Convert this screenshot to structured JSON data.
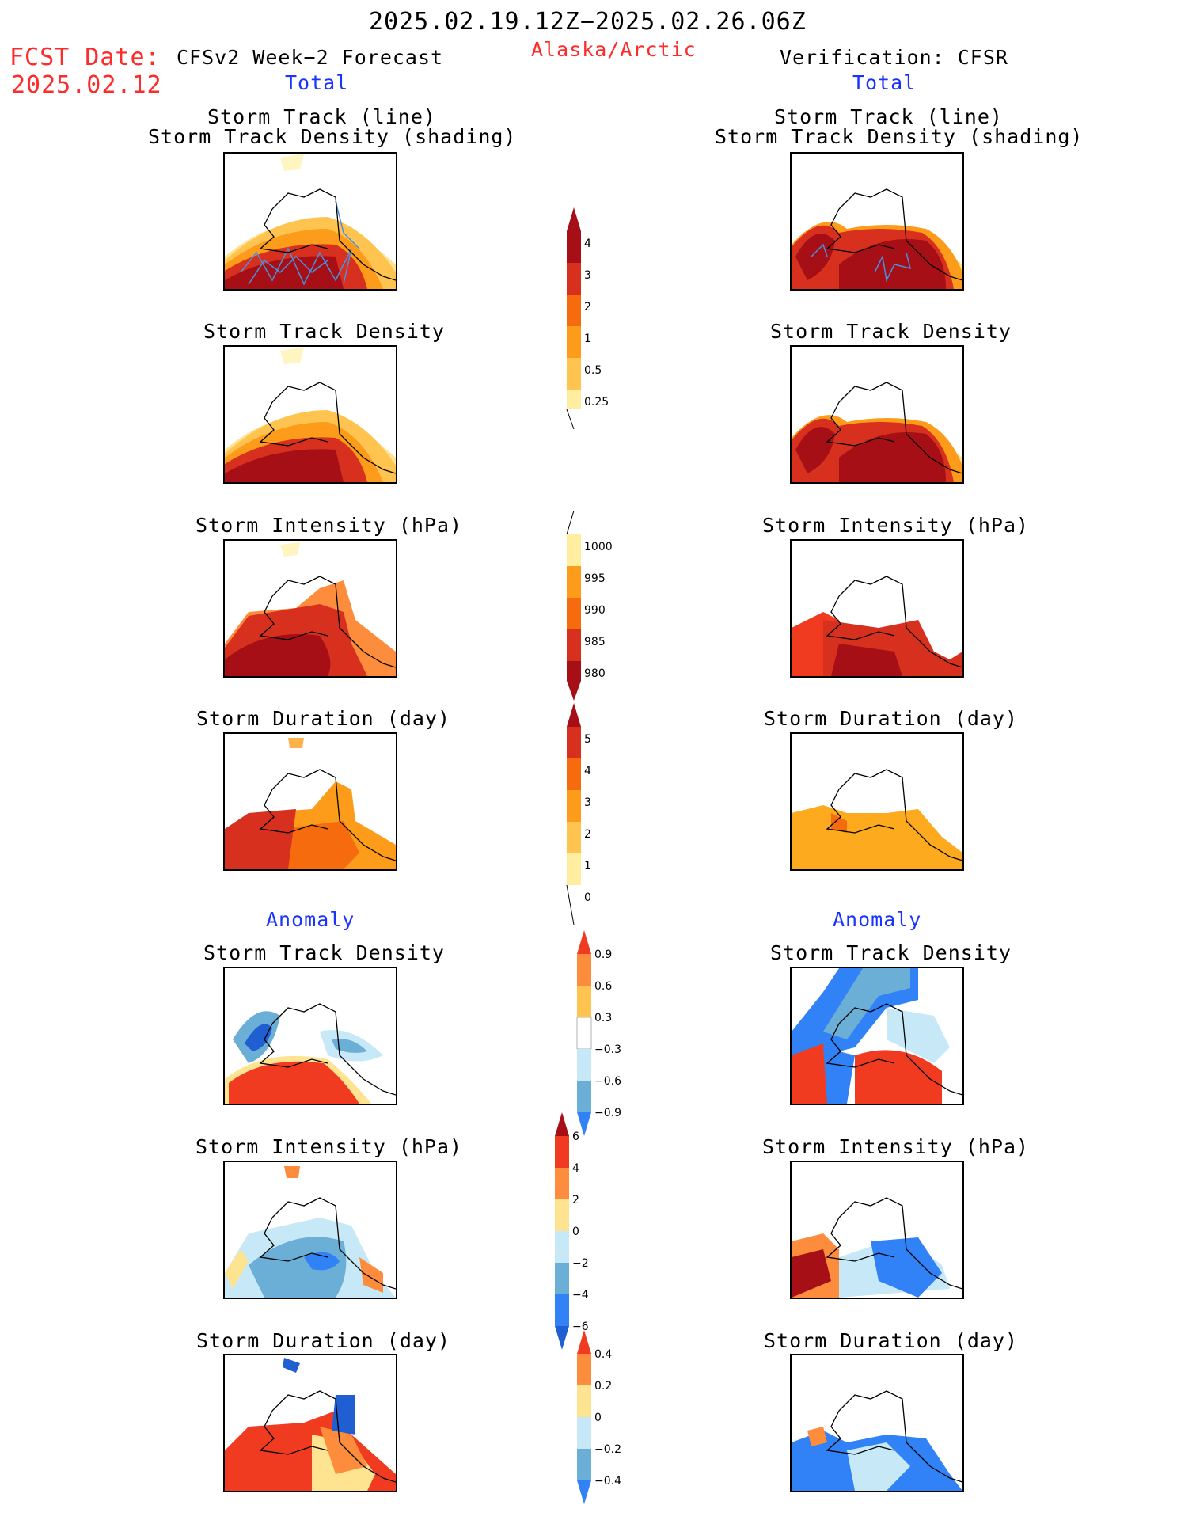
{
  "header": {
    "period": "2025.02.19.12Z−2025.02.26.06Z",
    "region": "Alaska/Arctic",
    "fcst_label": "FCST Date:",
    "fcst_date": "2025.02.12",
    "left_title": "CFSv2 Week−2 Forecast",
    "right_title": "Verification: CFSR",
    "total": "Total",
    "anomaly": "Anomaly"
  },
  "titles": {
    "track_line": "Storm Track (line)",
    "track_shading": "Storm Track Density (shading)",
    "density": "Storm Track Density",
    "intensity": "Storm Intensity (hPa)",
    "duration": "Storm Duration (day)"
  },
  "colorbars": {
    "density_total": {
      "ticks": [
        "4",
        "3",
        "2",
        "1",
        "0.5",
        "0.25"
      ],
      "colors": [
        "#a50f15",
        "#d7301f",
        "#f76b0f",
        "#fd9c1a",
        "#fec44f",
        "#ffeda0"
      ]
    },
    "intensity_total": {
      "ticks": [
        "1000",
        "995",
        "990",
        "985",
        "980"
      ],
      "colors": [
        "#ffeda0",
        "#fd9c1a",
        "#f76b0f",
        "#d7301f",
        "#a50f15"
      ]
    },
    "duration_total": {
      "ticks": [
        "5",
        "4",
        "3",
        "2",
        "1",
        "0"
      ],
      "colors": [
        "#a50f15",
        "#d7301f",
        "#f76b0f",
        "#fd9c1a",
        "#fec44f",
        "#ffeda0"
      ]
    },
    "density_anom": {
      "ticks": [
        "0.9",
        "0.6",
        "0.3",
        "−0.3",
        "−0.6",
        "−0.9"
      ]
    },
    "intensity_anom": {
      "ticks": [
        "6",
        "4",
        "2",
        "0",
        "−2",
        "−4",
        "−6"
      ]
    },
    "duration_anom": {
      "ticks": [
        "0.4",
        "0.2",
        "0",
        "−0.2",
        "−0.4"
      ]
    }
  },
  "colors": {
    "dark_red": "#a50f15",
    "red": "#d7301f",
    "orange_red": "#f03b20",
    "orange": "#fd8d3c",
    "light_orange": "#fdb24b",
    "yellow": "#fee391",
    "light_blue": "#c6e8f7",
    "blue": "#6baed6",
    "mid_blue": "#3182f6",
    "dark_blue": "#1f5fd1"
  }
}
